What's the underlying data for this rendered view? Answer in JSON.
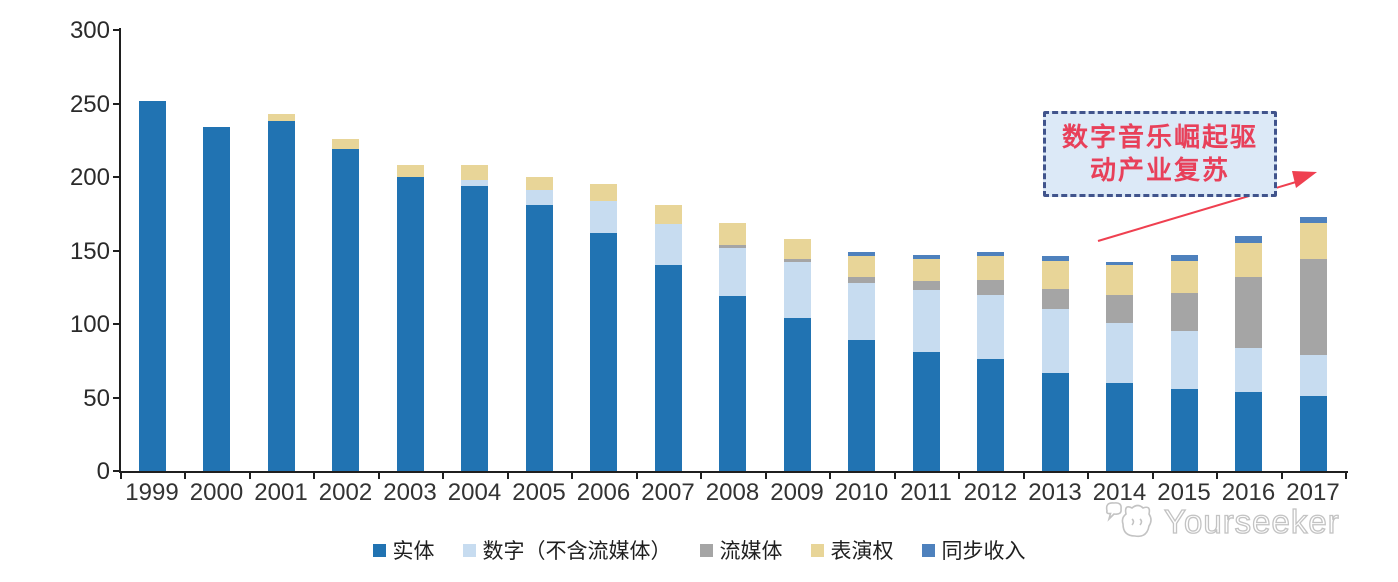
{
  "chart_data": {
    "type": "bar",
    "subtype": "stacked-vertical",
    "title": "",
    "xlabel": "",
    "ylabel": "",
    "ylim": [
      0,
      300
    ],
    "yticks": [
      0,
      50,
      100,
      150,
      200,
      250,
      300
    ],
    "grid": false,
    "legend_position": "bottom",
    "categories": [
      "1999",
      "2000",
      "2001",
      "2002",
      "2003",
      "2004",
      "2005",
      "2006",
      "2007",
      "2008",
      "2009",
      "2010",
      "2011",
      "2012",
      "2013",
      "2014",
      "2015",
      "2016",
      "2017"
    ],
    "series": [
      {
        "key": "physical",
        "name": "实体",
        "color": "#2173b2",
        "values": [
          252,
          234,
          238,
          219,
          200,
          194,
          181,
          162,
          140,
          119,
          104,
          89,
          81,
          76,
          67,
          60,
          56,
          54,
          51
        ]
      },
      {
        "key": "digital",
        "name": "数字（不含流媒体）",
        "color": "#c7dcf0",
        "values": [
          0,
          0,
          0,
          0,
          0,
          4,
          10,
          22,
          28,
          33,
          38,
          39,
          42,
          44,
          43,
          41,
          39,
          30,
          28
        ]
      },
      {
        "key": "streaming",
        "name": "流媒体",
        "color": "#a5a5a5",
        "values": [
          0,
          0,
          0,
          0,
          0,
          0,
          0,
          0,
          0,
          2,
          2,
          4,
          6,
          10,
          14,
          19,
          26,
          48,
          65
        ]
      },
      {
        "key": "performance",
        "name": "表演权",
        "color": "#e8d598",
        "values": [
          0,
          0,
          5,
          7,
          8,
          10,
          9,
          11,
          13,
          15,
          14,
          14,
          15,
          16,
          19,
          20,
          22,
          23,
          25
        ]
      },
      {
        "key": "sync",
        "name": "同步收入",
        "color": "#4e81bd",
        "values": [
          0,
          0,
          0,
          0,
          0,
          0,
          0,
          0,
          0,
          0,
          0,
          3,
          3,
          3,
          3,
          2,
          4,
          5,
          4
        ]
      }
    ]
  },
  "annotation": {
    "line1": "数字音乐崛起驱",
    "line2": "动产业复苏",
    "text_color": "#e8405a",
    "box_fill": "#dce9f7",
    "box_border": "#41548c",
    "arrow_color": "#ef4050"
  },
  "watermark": {
    "text": "Yourseeker",
    "icon": "chat-cat-logo-icon",
    "color": "#c3c3c3"
  }
}
